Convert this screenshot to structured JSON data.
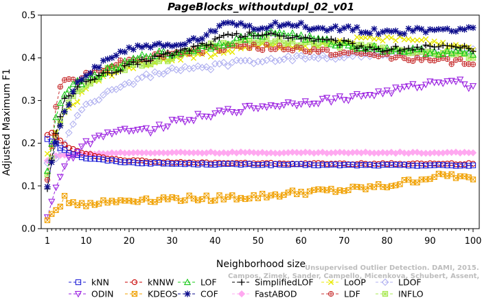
{
  "chart_data": {
    "type": "line",
    "title": "PageBlocks_withoutdupl_02_v01",
    "xlabel": "Neighborhood size",
    "ylabel": "Adjusted Maximum F1",
    "xlim": [
      1,
      100
    ],
    "ylim": [
      0,
      0.5
    ],
    "x_ticks": [
      1,
      10,
      20,
      30,
      40,
      50,
      60,
      70,
      80,
      90,
      100
    ],
    "y_ticks": [
      0.0,
      0.1,
      0.2,
      0.3,
      0.4,
      0.5
    ],
    "y_tick_labels": [
      "0.0",
      "0.1",
      "0.2",
      "0.3",
      "0.4",
      "0.5"
    ],
    "grid": false,
    "legend_position": "bottom",
    "watermark": [
      "Unsupervised Outlier Detection. DAMI, 2015.",
      "Campos, Zimek, Sander, Campello, Micenkova, Schubert, Assent, Houle"
    ],
    "x_values": "1..100 step 1",
    "series": [
      {
        "name": "kNN",
        "color": "#1f1fd6",
        "marker": "square",
        "dash": "4,3",
        "anchors": [
          [
            1,
            0.21
          ],
          [
            2,
            0.205
          ],
          [
            3,
            0.2
          ],
          [
            4,
            0.19
          ],
          [
            6,
            0.178
          ],
          [
            10,
            0.165
          ],
          [
            15,
            0.16
          ],
          [
            20,
            0.155
          ],
          [
            30,
            0.152
          ],
          [
            50,
            0.15
          ],
          [
            70,
            0.149
          ],
          [
            100,
            0.148
          ]
        ]
      },
      {
        "name": "kNNW",
        "color": "#c80000",
        "marker": "circle",
        "dash": "4,3",
        "anchors": [
          [
            1,
            0.22
          ],
          [
            2,
            0.225
          ],
          [
            3,
            0.215
          ],
          [
            4,
            0.205
          ],
          [
            6,
            0.19
          ],
          [
            10,
            0.175
          ],
          [
            15,
            0.165
          ],
          [
            20,
            0.16
          ],
          [
            30,
            0.155
          ],
          [
            50,
            0.153
          ],
          [
            70,
            0.152
          ],
          [
            100,
            0.152
          ]
        ]
      },
      {
        "name": "LOF",
        "color": "#16c816",
        "marker": "triangle-up",
        "dash": "4,3",
        "anchors": [
          [
            1,
            0.14
          ],
          [
            2,
            0.2
          ],
          [
            3,
            0.26
          ],
          [
            5,
            0.32
          ],
          [
            8,
            0.34
          ],
          [
            10,
            0.35
          ],
          [
            15,
            0.37
          ],
          [
            20,
            0.39
          ],
          [
            25,
            0.41
          ],
          [
            30,
            0.41
          ],
          [
            40,
            0.43
          ],
          [
            50,
            0.455
          ],
          [
            55,
            0.46
          ],
          [
            60,
            0.45
          ],
          [
            65,
            0.44
          ],
          [
            70,
            0.43
          ],
          [
            75,
            0.425
          ],
          [
            80,
            0.42
          ],
          [
            90,
            0.415
          ],
          [
            100,
            0.41
          ]
        ]
      },
      {
        "name": "SimplifiedLOF",
        "color": "#000000",
        "marker": "plus",
        "dash": "4,3",
        "anchors": [
          [
            1,
            0.1
          ],
          [
            2,
            0.16
          ],
          [
            3,
            0.22
          ],
          [
            5,
            0.3
          ],
          [
            8,
            0.33
          ],
          [
            10,
            0.35
          ],
          [
            15,
            0.36
          ],
          [
            20,
            0.38
          ],
          [
            25,
            0.4
          ],
          [
            30,
            0.41
          ],
          [
            40,
            0.44
          ],
          [
            42,
            0.45
          ],
          [
            50,
            0.455
          ],
          [
            60,
            0.45
          ],
          [
            65,
            0.44
          ],
          [
            70,
            0.435
          ],
          [
            75,
            0.425
          ],
          [
            80,
            0.42
          ],
          [
            90,
            0.425
          ],
          [
            100,
            0.42
          ]
        ]
      },
      {
        "name": "LoOP",
        "color": "#e8e800",
        "marker": "cross",
        "dash": "4,3",
        "anchors": [
          [
            1,
            0.17
          ],
          [
            2,
            0.19
          ],
          [
            3,
            0.22
          ],
          [
            5,
            0.27
          ],
          [
            8,
            0.3
          ],
          [
            10,
            0.33
          ],
          [
            15,
            0.36
          ],
          [
            20,
            0.38
          ],
          [
            30,
            0.4
          ],
          [
            40,
            0.41
          ],
          [
            50,
            0.43
          ],
          [
            60,
            0.42
          ],
          [
            65,
            0.43
          ],
          [
            70,
            0.44
          ],
          [
            80,
            0.445
          ],
          [
            90,
            0.44
          ],
          [
            95,
            0.43
          ],
          [
            100,
            0.425
          ]
        ]
      },
      {
        "name": "LDOF",
        "color": "#b0b0f0",
        "marker": "diamond",
        "dash": "4,3",
        "anchors": [
          [
            1,
            0.15
          ],
          [
            2,
            0.16
          ],
          [
            3,
            0.17
          ],
          [
            5,
            0.2
          ],
          [
            8,
            0.26
          ],
          [
            10,
            0.29
          ],
          [
            15,
            0.32
          ],
          [
            20,
            0.34
          ],
          [
            25,
            0.36
          ],
          [
            30,
            0.37
          ],
          [
            40,
            0.38
          ],
          [
            50,
            0.395
          ],
          [
            60,
            0.4
          ],
          [
            70,
            0.405
          ],
          [
            80,
            0.41
          ],
          [
            90,
            0.41
          ],
          [
            100,
            0.415
          ]
        ]
      },
      {
        "name": "ODIN",
        "color": "#9a1fe0",
        "marker": "triangle-down",
        "dash": "4,3",
        "anchors": [
          [
            1,
            0.025
          ],
          [
            2,
            0.06
          ],
          [
            3,
            0.1
          ],
          [
            5,
            0.15
          ],
          [
            8,
            0.18
          ],
          [
            10,
            0.2
          ],
          [
            12,
            0.21
          ],
          [
            15,
            0.225
          ],
          [
            20,
            0.235
          ],
          [
            25,
            0.23
          ],
          [
            30,
            0.25
          ],
          [
            40,
            0.27
          ],
          [
            50,
            0.285
          ],
          [
            60,
            0.295
          ],
          [
            70,
            0.305
          ],
          [
            80,
            0.32
          ],
          [
            90,
            0.34
          ],
          [
            95,
            0.35
          ],
          [
            98,
            0.34
          ],
          [
            100,
            0.33
          ]
        ]
      },
      {
        "name": "KDEOS",
        "color": "#f0a000",
        "marker": "square-x",
        "dash": "4,3",
        "anchors": [
          [
            1,
            0.02
          ],
          [
            2,
            0.03
          ],
          [
            3,
            0.045
          ],
          [
            5,
            0.07
          ],
          [
            6,
            0.065
          ],
          [
            8,
            0.06
          ],
          [
            10,
            0.058
          ],
          [
            15,
            0.062
          ],
          [
            20,
            0.067
          ],
          [
            30,
            0.07
          ],
          [
            40,
            0.072
          ],
          [
            50,
            0.075
          ],
          [
            60,
            0.085
          ],
          [
            70,
            0.09
          ],
          [
            80,
            0.1
          ],
          [
            90,
            0.12
          ],
          [
            95,
            0.125
          ],
          [
            100,
            0.113
          ]
        ]
      },
      {
        "name": "COF",
        "color": "#0c0c8c",
        "marker": "asterisk",
        "dash": "4,3",
        "anchors": [
          [
            1,
            0.1
          ],
          [
            2,
            0.15
          ],
          [
            3,
            0.2
          ],
          [
            5,
            0.27
          ],
          [
            8,
            0.34
          ],
          [
            10,
            0.36
          ],
          [
            15,
            0.4
          ],
          [
            20,
            0.42
          ],
          [
            25,
            0.43
          ],
          [
            30,
            0.425
          ],
          [
            35,
            0.44
          ],
          [
            40,
            0.46
          ],
          [
            43,
            0.485
          ],
          [
            50,
            0.47
          ],
          [
            55,
            0.48
          ],
          [
            60,
            0.475
          ],
          [
            65,
            0.465
          ],
          [
            70,
            0.47
          ],
          [
            80,
            0.46
          ],
          [
            90,
            0.465
          ],
          [
            100,
            0.47
          ]
        ]
      },
      {
        "name": "FastABOD",
        "color": "#ffa8f0",
        "marker": "diamond-filled",
        "dash": "4,3",
        "anchors": [
          [
            1,
            0.16
          ],
          [
            2,
            0.165
          ],
          [
            3,
            0.17
          ],
          [
            5,
            0.172
          ],
          [
            10,
            0.175
          ],
          [
            20,
            0.178
          ],
          [
            40,
            0.178
          ],
          [
            60,
            0.178
          ],
          [
            80,
            0.178
          ],
          [
            100,
            0.178
          ]
        ]
      },
      {
        "name": "LDF",
        "color": "#c83232",
        "marker": "circle-plus",
        "dash": "4,3",
        "anchors": [
          [
            1,
            0.12
          ],
          [
            2,
            0.2
          ],
          [
            3,
            0.28
          ],
          [
            4,
            0.33
          ],
          [
            5,
            0.35
          ],
          [
            8,
            0.35
          ],
          [
            10,
            0.36
          ],
          [
            15,
            0.38
          ],
          [
            20,
            0.395
          ],
          [
            30,
            0.41
          ],
          [
            40,
            0.42
          ],
          [
            45,
            0.43
          ],
          [
            50,
            0.425
          ],
          [
            60,
            0.42
          ],
          [
            65,
            0.415
          ],
          [
            70,
            0.41
          ],
          [
            80,
            0.405
          ],
          [
            90,
            0.395
          ],
          [
            100,
            0.388
          ]
        ]
      },
      {
        "name": "INFLO",
        "color": "#a8e850",
        "marker": "square-star",
        "dash": "4,3",
        "anchors": [
          [
            1,
            0.12
          ],
          [
            2,
            0.17
          ],
          [
            3,
            0.22
          ],
          [
            5,
            0.28
          ],
          [
            8,
            0.32
          ],
          [
            10,
            0.34
          ],
          [
            15,
            0.37
          ],
          [
            20,
            0.38
          ],
          [
            30,
            0.4
          ],
          [
            40,
            0.43
          ],
          [
            50,
            0.44
          ],
          [
            60,
            0.435
          ],
          [
            70,
            0.43
          ],
          [
            80,
            0.42
          ],
          [
            90,
            0.41
          ],
          [
            100,
            0.405
          ]
        ]
      }
    ]
  }
}
